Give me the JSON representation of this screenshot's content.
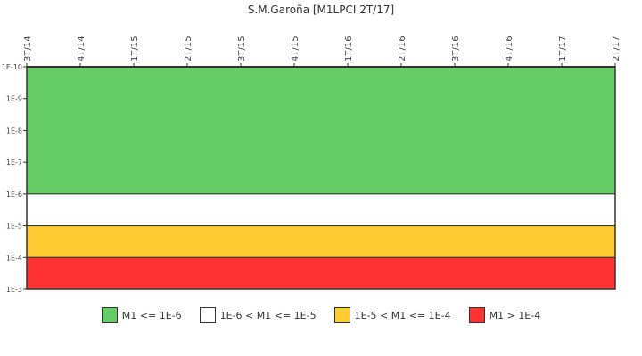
{
  "chart_data": {
    "type": "area",
    "title": "S.M.Garoña [M1LPCI 2T/17]",
    "xlabel": "",
    "ylabel": "",
    "categories": [
      "3T/14",
      "4T/14",
      "1T/15",
      "2T/15",
      "3T/15",
      "4T/15",
      "1T/16",
      "2T/16",
      "3T/16",
      "4T/16",
      "1T/17",
      "2T/17"
    ],
    "y_scale": "log",
    "y_inverted": true,
    "y_ticks": [
      "1E-10",
      "1E-9",
      "1E-8",
      "1E-7",
      "1E-6",
      "1E-5",
      "1E-4",
      "1E-3"
    ],
    "ylim": [
      1e-10,
      0.001
    ],
    "grid": false,
    "legend_position": "bottom",
    "bands": [
      {
        "name": "M1 <= 1E-6",
        "from": 1e-10,
        "to": 1e-06,
        "color": "#66cc66"
      },
      {
        "name": "1E-6 < M1 <= 1E-5",
        "from": 1e-06,
        "to": 1e-05,
        "color": "#ffffff"
      },
      {
        "name": "1E-5 < M1 <= 1E-4",
        "from": 1e-05,
        "to": 0.0001,
        "color": "#ffcc33"
      },
      {
        "name": "M1 > 1E-4",
        "from": 0.0001,
        "to": 0.001,
        "color": "#ff3333"
      }
    ],
    "series": []
  },
  "legend": [
    {
      "label": "M1 <= 1E-6",
      "color": "#66cc66"
    },
    {
      "label": "1E-6 < M1 <= 1E-5",
      "color": "#ffffff"
    },
    {
      "label": "1E-5 < M1 <= 1E-4",
      "color": "#ffcc33"
    },
    {
      "label": "M1 > 1E-4",
      "color": "#ff3333"
    }
  ]
}
